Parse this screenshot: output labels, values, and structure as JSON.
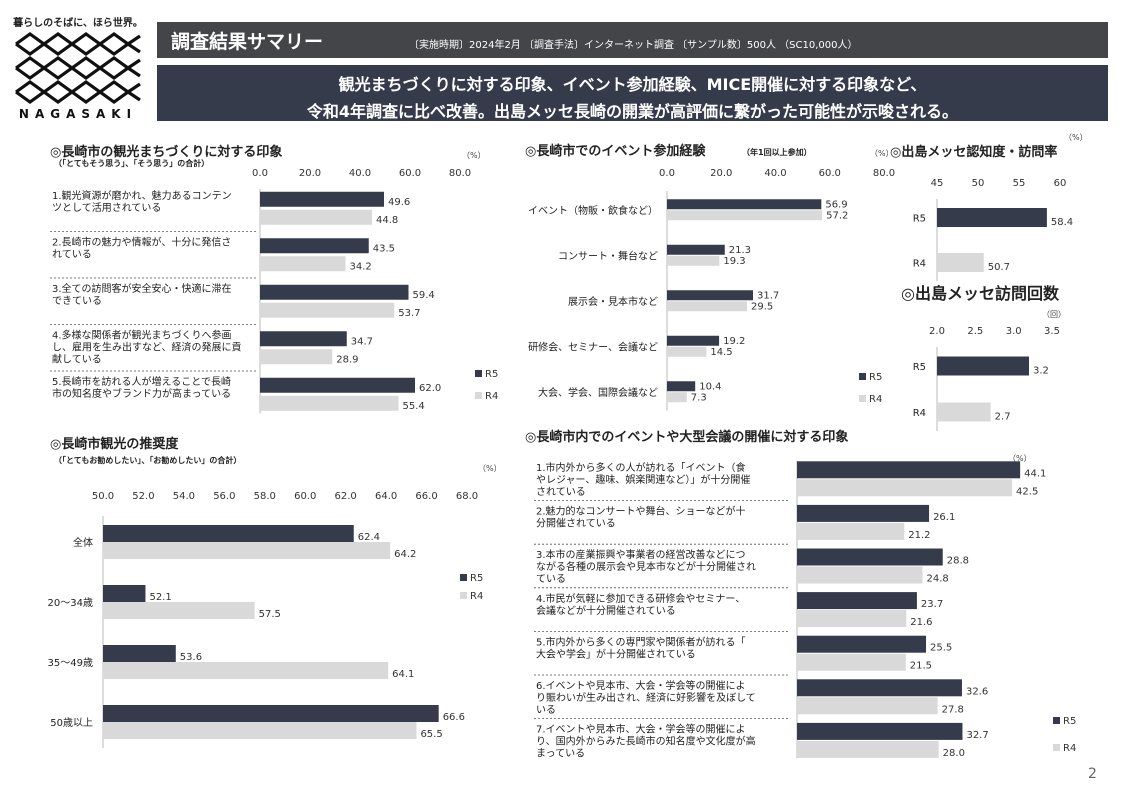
{
  "header": {
    "slogan": "暮らしのそばに、ほら世界。",
    "brand": "NAGASAKI",
    "title": "調査結果サマリー",
    "meta": "〔実施時期〕2024年2月 〔調査手法〕インターネット調査 〔サンプル数〕500人 （SC10,000人）"
  },
  "headline": {
    "line1": "観光まちづくりに対する印象、イベント参加経験、MICE開催に対する印象など、",
    "line2": "令和4年調査に比べ改善。出島メッセ長崎の開業が高評価に繋がった可能性が示唆される。"
  },
  "colors": {
    "r5": "#353b4a",
    "r4": "#d9d9d9",
    "title_bar": "#444548",
    "headline_bg": "#353b4a"
  },
  "page_number": "2",
  "chart_data": [
    {
      "type": "bar",
      "orientation": "horizontal",
      "title": "◎長崎市の観光まちづくりに対する印象",
      "subtitle": "（「とてもそう思う」、「そう思う」の合計）",
      "unit": "（%）",
      "xlim": [
        0,
        80
      ],
      "ticks": [
        "0.0",
        "20.0",
        "40.0",
        "60.0",
        "80.0"
      ],
      "categories": [
        "1.観光資源が磨かれ、魅力あるコンテンツとして活用されている",
        "2.長崎市の魅力や情報が、十分に発信されている",
        "3.全ての訪問客が安全安心・快適に滞在できている",
        "4.多様な関係者が観光まちづくりへ参画し、雇用を生み出すなど、経済の発展に貢献している",
        "5.長崎市を訪れる人が増えることで長崎市の知名度やブランド力が高まっている"
      ],
      "series": [
        {
          "name": "R5",
          "values": [
            49.6,
            43.5,
            59.4,
            34.7,
            62.0
          ]
        },
        {
          "name": "R4",
          "values": [
            44.8,
            34.2,
            53.7,
            28.9,
            55.4
          ]
        }
      ],
      "value_labels": [
        [
          "49.6",
          "43.5",
          "59.4",
          "34.7",
          "62.0"
        ],
        [
          "44.8",
          "34.2",
          "53.7",
          "28.9",
          "55.4"
        ]
      ]
    },
    {
      "type": "bar",
      "orientation": "horizontal",
      "title": "◎長崎市でのイベント参加経験",
      "subtitle": "（年1回以上参加）",
      "unit": "（%）",
      "xlim": [
        0,
        80
      ],
      "ticks": [
        "0.0",
        "20.0",
        "40.0",
        "60.0",
        "80.0"
      ],
      "categories": [
        "イベント（物販・飲食など）",
        "コンサート・舞台など",
        "展示会・見本市など",
        "研修会、セミナー、会議など",
        "大会、学会、国際会議など"
      ],
      "series": [
        {
          "name": "R5",
          "values": [
            56.9,
            21.3,
            31.7,
            19.2,
            10.4
          ]
        },
        {
          "name": "R4",
          "values": [
            57.2,
            19.3,
            29.5,
            14.5,
            7.3
          ]
        }
      ],
      "value_labels": [
        [
          "56.9",
          "21.3",
          "31.7",
          "19.2",
          "10.4"
        ],
        [
          "57.2",
          "19.3",
          "29.5",
          "14.5",
          "7.3"
        ]
      ]
    },
    {
      "type": "bar",
      "orientation": "horizontal",
      "title": "◎出島メッセ認知度・訪問率",
      "subtitle": "",
      "unit": "（%）",
      "xlim": [
        45,
        60
      ],
      "ticks": [
        "45",
        "50",
        "55",
        "60"
      ],
      "categories": [
        "R5",
        "R4"
      ],
      "series": [
        {
          "name": "",
          "values": [
            58.4,
            50.7
          ]
        }
      ],
      "value_labels": [
        [
          "58.4",
          "50.7"
        ]
      ]
    },
    {
      "type": "bar",
      "orientation": "horizontal",
      "title": "◎出島メッセ訪問回数",
      "subtitle": "",
      "unit": "（回）",
      "xlim": [
        2.0,
        3.5
      ],
      "ticks": [
        "2.0",
        "2.5",
        "3.0",
        "3.5"
      ],
      "categories": [
        "R5",
        "R4"
      ],
      "series": [
        {
          "name": "",
          "values": [
            3.2,
            2.7
          ]
        }
      ],
      "value_labels": [
        [
          "3.2",
          "2.7"
        ]
      ]
    },
    {
      "type": "bar",
      "orientation": "horizontal",
      "title": "◎長崎市観光の推奨度",
      "subtitle": "（「とてもお勧めしたい」、「お勧めしたい」の合計）",
      "unit": "（%）",
      "xlim": [
        50,
        68
      ],
      "ticks": [
        "50.0",
        "52.0",
        "54.0",
        "56.0",
        "58.0",
        "60.0",
        "62.0",
        "64.0",
        "66.0",
        "68.0"
      ],
      "categories": [
        "全体",
        "20～34歳",
        "35～49歳",
        "50歳以上"
      ],
      "series": [
        {
          "name": "R5",
          "values": [
            62.4,
            52.1,
            53.6,
            66.6
          ]
        },
        {
          "name": "R4",
          "values": [
            64.2,
            57.5,
            64.1,
            65.5
          ]
        }
      ],
      "value_labels": [
        [
          "62.4",
          "52.1",
          "53.6",
          "66.6"
        ],
        [
          "64.2",
          "57.5",
          "64.1",
          "65.5"
        ]
      ]
    },
    {
      "type": "bar",
      "orientation": "horizontal",
      "title": "◎長崎市内でのイベントや大型会議の開催に対する印象",
      "subtitle": "",
      "unit": "（%）",
      "xlim": [
        0,
        50
      ],
      "ticks": [],
      "categories": [
        "1.市内外から多くの人が訪れる「イベント（食やレジャー、趣味、娯楽関連など）」が十分開催されている",
        "2.魅力的なコンサートや舞台、ショーなどが十分開催されている",
        "3.本市の産業振興や事業者の経営改善などにつながる各種の展示会や見本市などが十分開催されている",
        "4.市民が気軽に参加できる研修会やセミナー、会議などが十分開催されている",
        "5.市内外から多くの専門家や関係者が訪れる「大会や学会」が十分開催されている",
        "6.イベントや見本市、大会・学会等の開催により賑わいが生み出され、経済に好影響を及ぼしている",
        "7.イベントや見本市、大会・学会等の開催により、国内外からみた長崎市の知名度や文化度が高まっている"
      ],
      "series": [
        {
          "name": "R5",
          "values": [
            44.1,
            26.1,
            28.8,
            23.7,
            25.5,
            32.6,
            32.7
          ]
        },
        {
          "name": "R4",
          "values": [
            42.5,
            21.2,
            24.8,
            21.6,
            21.5,
            27.8,
            28.0
          ]
        }
      ],
      "value_labels": [
        [
          "44.1",
          "26.1",
          "28.8",
          "23.7",
          "25.5",
          "32.6",
          "32.7"
        ],
        [
          "42.5",
          "21.2",
          "24.8",
          "21.6",
          "21.5",
          "27.8",
          "28.0"
        ]
      ]
    }
  ]
}
